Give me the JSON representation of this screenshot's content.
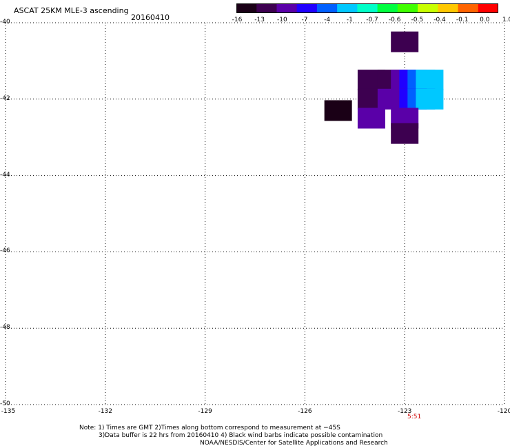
{
  "header": {
    "title": "ASCAT 25KM MLE-3 ascending",
    "date": "20160410"
  },
  "colorbar": {
    "labels": [
      "-16",
      "-13",
      "-10",
      "-7",
      "-4",
      "-1",
      "-0.7",
      "-0.6",
      "-0.5",
      "-0.4",
      "-0.1",
      "0.0",
      "1.0"
    ],
    "colors": [
      "#1a0016",
      "#3d0050",
      "#5a00a8",
      "#2000ff",
      "#0060ff",
      "#00c8ff",
      "#00ffc8",
      "#00ff40",
      "#40ff00",
      "#c8ff00",
      "#ffc800",
      "#ff6400",
      "#ff0000"
    ]
  },
  "axes": {
    "x_labels": [
      "-135",
      "-132",
      "-129",
      "-126",
      "-123",
      "-120"
    ],
    "y_labels": [
      "-40",
      "-42",
      "-44",
      "-46",
      "-48",
      "-50"
    ],
    "time_label": "5:51"
  },
  "chart_data": {
    "type": "heatmap",
    "xlim": [
      -135,
      -120
    ],
    "ylim": [
      -50,
      -40
    ],
    "grid": true,
    "cells": [
      {
        "lon": -123.0,
        "lat": -40.5,
        "value": -13
      },
      {
        "lon": -124.0,
        "lat": -41.5,
        "value": -13
      },
      {
        "lon": -123.4,
        "lat": -41.5,
        "value": -13
      },
      {
        "lon": -123.0,
        "lat": -41.5,
        "value": -10
      },
      {
        "lon": -122.75,
        "lat": -41.5,
        "value": -7
      },
      {
        "lon": -122.5,
        "lat": -41.5,
        "value": -4
      },
      {
        "lon": -122.25,
        "lat": -41.5,
        "value": -1
      },
      {
        "lon": -125.0,
        "lat": -42.3,
        "value": -16
      },
      {
        "lon": -124.0,
        "lat": -42.0,
        "value": -13
      },
      {
        "lon": -123.4,
        "lat": -42.0,
        "value": -10
      },
      {
        "lon": -122.75,
        "lat": -42.0,
        "value": -7
      },
      {
        "lon": -122.5,
        "lat": -42.0,
        "value": -4
      },
      {
        "lon": -122.25,
        "lat": -42.0,
        "value": -1
      },
      {
        "lon": -124.0,
        "lat": -42.5,
        "value": -10
      },
      {
        "lon": -123.0,
        "lat": -42.5,
        "value": -10
      },
      {
        "lon": -123.0,
        "lat": -42.9,
        "value": -13
      }
    ]
  },
  "footer": {
    "note1": "Note: 1) Times are GMT 2)Times along bottom correspond to measurement at −45S",
    "note2": "3)Data buffer is 22 hrs from 20160410 4) Black wind barbs indicate possible contamination",
    "credit": "NOAA/NESDIS/Center for Satellite Applications and Research"
  }
}
